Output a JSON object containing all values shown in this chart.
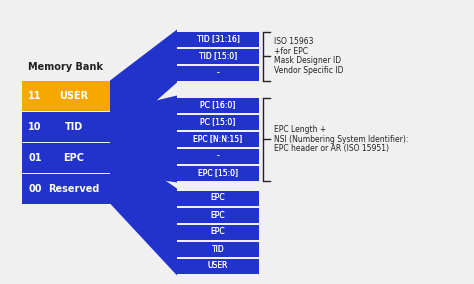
{
  "bg_color": "#f0f0f0",
  "blue": "#2233cc",
  "yellow": "#f5a800",
  "white": "#ffffff",
  "gray_text": "#222222",
  "memory_bank_title": "Memory Bank",
  "memory_bank_rows": [
    {
      "num": "11",
      "label": "USER",
      "highlight": true
    },
    {
      "num": "10",
      "label": "TID",
      "highlight": false
    },
    {
      "num": "01",
      "label": "EPC",
      "highlight": false
    },
    {
      "num": "00",
      "label": "Reserved",
      "highlight": false
    }
  ],
  "top_blocks": [
    "-",
    "TID [15:0]",
    "TID [31:16]"
  ],
  "mid_blocks": [
    "EPC [15:0]",
    "-",
    "EPC [N:N:15]",
    "PC [15:0]",
    "PC [16:0]"
  ],
  "bot_blocks": [
    "USER",
    "TID",
    "EPC",
    "EPC",
    "EPC"
  ],
  "annotation1_lines": [
    "ISO 15963",
    "+for EPC",
    "Mask Designer ID",
    "Vendor Specific ID"
  ],
  "annotation2_lines": [
    "EPC Length +",
    "NSI (Numbering System Identifier):",
    "EPC header or AR (ISO 15951)"
  ]
}
